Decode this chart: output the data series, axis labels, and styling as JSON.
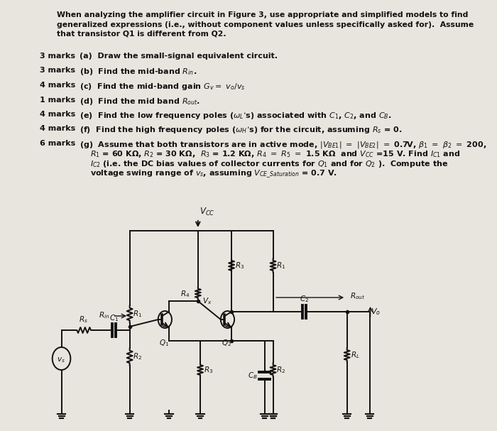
{
  "bg_color": "#e8e5de",
  "text_color": "#111111",
  "title_text": "When analyzing the amplifier circuit in Figure 3, use appropriate and simplified models to find\ngeneralized expressions (i.e., without component values unless specifically asked for).  Assume\nthat transistor Q1 is different from Q2.",
  "questions": [
    {
      "marks": "3 marks",
      "label": "(a)",
      "text": "Draw the small-signal equivalent circuit.",
      "extra_lines": []
    },
    {
      "marks": "3 marks",
      "label": "(b)",
      "text": "Find the mid-band $R_{in}$.",
      "extra_lines": []
    },
    {
      "marks": "4 marks",
      "label": "(c)",
      "text": "Find the mid-band gain $G_{v}$$=$ $v_o/v_s$",
      "extra_lines": []
    },
    {
      "marks": "1 marks",
      "label": "(d)",
      "text": "Find the mid band $R_{out}$.",
      "extra_lines": []
    },
    {
      "marks": "4 marks",
      "label": "(e)",
      "text": "Find the low frequency poles ($\\omega_L$’s) associated with $C_1$, $C_2$, and $C_B$.",
      "extra_lines": []
    },
    {
      "marks": "4 marks",
      "label": "(f)",
      "text": "Find the high frequency poles ($\\omega_H$’s) for the circuit, assuming $R_s$ = 0.",
      "extra_lines": []
    },
    {
      "marks": "6 marks",
      "label": "(g)",
      "text": "Assume that both transistors are in active mode, $|V_{BE1}|$ $=$ $|V_{BE2}|$ $=$ 0.7V, $\\beta_1$ $=$ $\\beta_2$ $=$ 200,",
      "extra_lines": [
        "$R_1$ = 60 KΩ, $R_2$ = 30 KΩ,  $R_3$ = 1.2 KΩ, $R_4$ $=$ $R_5$ $=$ 1.5 KΩ  and $V_{CC}$ =15 V. Find $I_{C1}$ and",
        "$I_{C2}$ (i.e. the DC bias values of collector currents for $Q_1$ and for $Q_2$ ).  Compute the",
        "voltage swing range of $v_s$, assuming $V_{CE\\_Saturation}$ = 0.7 V."
      ]
    }
  ]
}
